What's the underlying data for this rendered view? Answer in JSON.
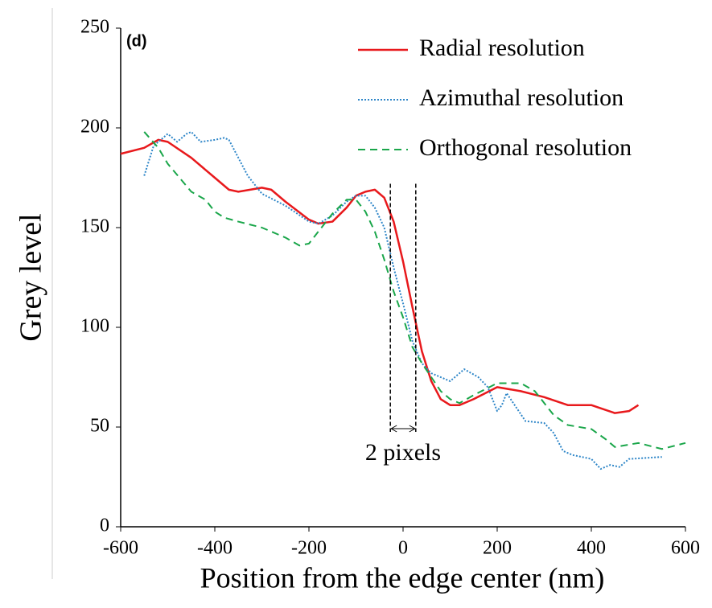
{
  "chart_data": {
    "type": "line",
    "xlabel": "Position from the edge center (nm)",
    "ylabel": "Grey level",
    "annotations": [
      "(d)",
      "2 pixels"
    ],
    "vlines": [
      -27,
      27
    ],
    "xlim": [
      -600,
      600
    ],
    "xticks": [
      -600,
      -400,
      -200,
      0,
      200,
      400,
      600
    ],
    "ylim": [
      0,
      250
    ],
    "yticks": [
      0,
      50,
      100,
      150,
      200,
      250
    ],
    "grid": false,
    "legend": "upper right",
    "series": [
      {
        "name": "Radial resolution",
        "color": "#e8191c",
        "style": "solid",
        "x": [
          -600,
          -550,
          -520,
          -500,
          -450,
          -400,
          -370,
          -350,
          -300,
          -280,
          -250,
          -200,
          -180,
          -150,
          -120,
          -100,
          -80,
          -60,
          -40,
          -20,
          0,
          20,
          40,
          60,
          80,
          100,
          120,
          150,
          200,
          250,
          300,
          350,
          400,
          450,
          480,
          500
        ],
        "values": [
          187,
          190,
          194,
          193,
          185,
          175,
          169,
          168,
          170,
          169,
          163,
          154,
          152,
          153,
          160,
          166,
          168,
          169,
          165,
          153,
          133,
          110,
          88,
          73,
          64,
          61,
          61,
          64,
          70,
          68,
          65,
          61,
          61,
          57,
          58,
          61
        ]
      },
      {
        "name": "Azimuthal resolution",
        "color": "#2e86c8",
        "style": "dotted",
        "x": [
          -550,
          -530,
          -500,
          -480,
          -460,
          -450,
          -430,
          -400,
          -380,
          -370,
          -350,
          -330,
          -300,
          -250,
          -200,
          -180,
          -150,
          -120,
          -100,
          -80,
          -60,
          -40,
          -20,
          0,
          20,
          40,
          60,
          80,
          100,
          130,
          160,
          180,
          200,
          210,
          220,
          240,
          260,
          300,
          320,
          340,
          360,
          400,
          420,
          440,
          460,
          480,
          550
        ],
        "values": [
          176,
          191,
          197,
          193,
          197,
          198,
          193,
          194,
          195,
          194,
          185,
          176,
          167,
          161,
          153,
          152,
          156,
          163,
          166,
          166,
          160,
          150,
          130,
          112,
          93,
          82,
          77,
          75,
          73,
          79,
          75,
          70,
          58,
          61,
          67,
          60,
          53,
          52,
          47,
          38,
          36,
          34,
          29,
          31,
          30,
          34,
          35
        ]
      },
      {
        "name": "Orthogonal resolution",
        "color": "#1aa64a",
        "style": "dashed",
        "x": [
          -550,
          -520,
          -500,
          -450,
          -420,
          -400,
          -380,
          -350,
          -300,
          -250,
          -220,
          -200,
          -180,
          -150,
          -120,
          -100,
          -80,
          -60,
          -40,
          -20,
          0,
          20,
          40,
          60,
          80,
          100,
          120,
          150,
          200,
          250,
          280,
          300,
          320,
          350,
          400,
          430,
          450,
          500,
          550,
          600
        ],
        "values": [
          198,
          190,
          182,
          168,
          164,
          158,
          155,
          153,
          150,
          145,
          141,
          142,
          148,
          157,
          164,
          164,
          158,
          148,
          134,
          118,
          105,
          90,
          82,
          75,
          68,
          64,
          62,
          66,
          72,
          72,
          68,
          62,
          56,
          51,
          49,
          44,
          40,
          42,
          39,
          42
        ]
      }
    ]
  }
}
